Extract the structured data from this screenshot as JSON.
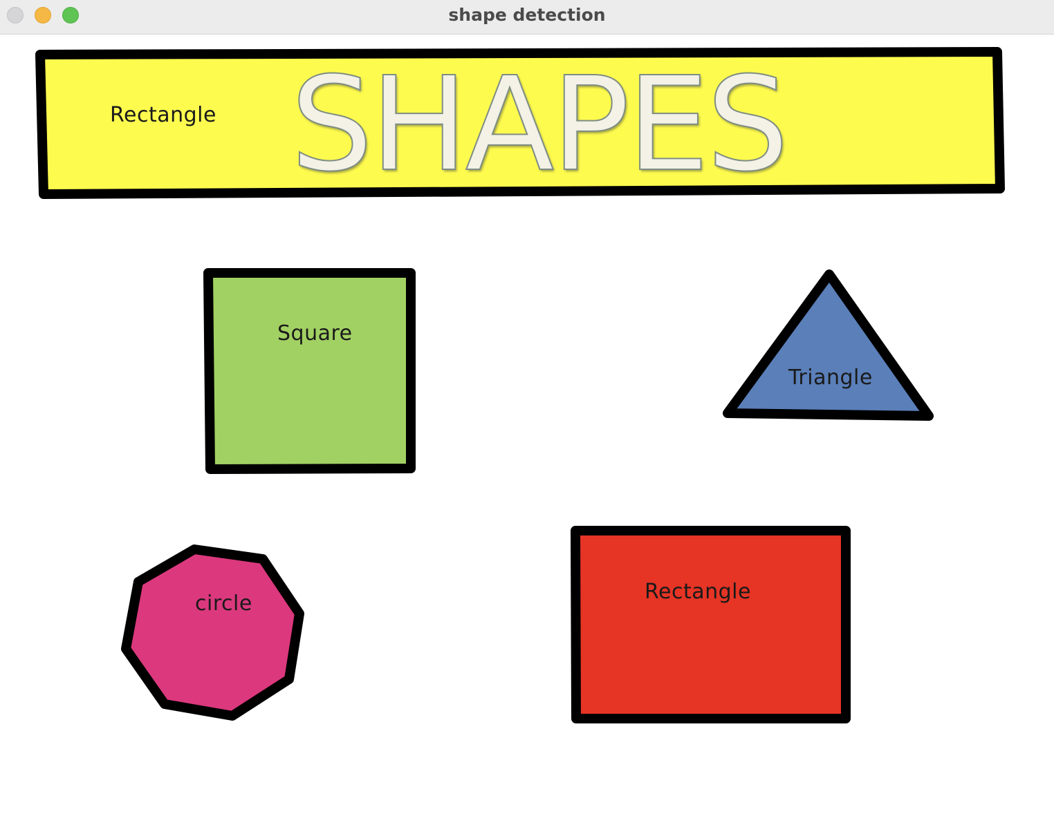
{
  "window": {
    "title": "shape detection"
  },
  "banner": {
    "text": "SHAPES",
    "label": "Rectangle",
    "fill_color": "#fefb4f"
  },
  "shapes": [
    {
      "kind": "square",
      "label": "Square",
      "fill_color": "#a2d163"
    },
    {
      "kind": "triangle",
      "label": "Triangle",
      "fill_color": "#5a7fb9"
    },
    {
      "kind": "polygon",
      "label": "circle",
      "fill_color": "#dc387e"
    },
    {
      "kind": "rectangle",
      "label": "Rectangle",
      "fill_color": "#e63425"
    }
  ],
  "colors": {
    "outline": "#000000",
    "background": "#ffffff"
  }
}
